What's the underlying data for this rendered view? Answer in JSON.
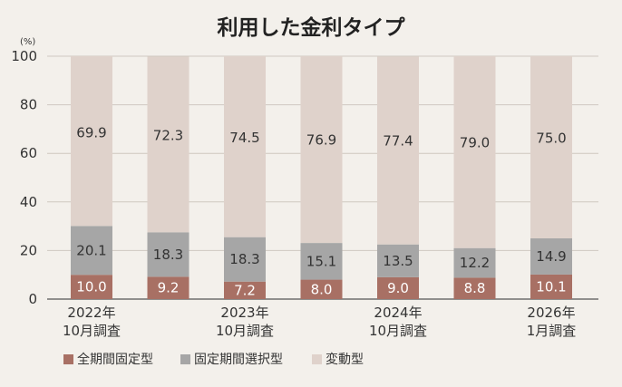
{
  "chart_data": {
    "type": "bar",
    "stacked": true,
    "title": "利用した金利タイプ",
    "unit_label": "(%)",
    "ylim": [
      0,
      100
    ],
    "yticks": [
      "0",
      "20",
      "40",
      "60",
      "80",
      "100"
    ],
    "grid": true,
    "legend_position": "bottom-left",
    "categories": [
      [
        "2022年",
        "10月調査"
      ],
      [
        "",
        ""
      ],
      [
        "2023年",
        "10月調査"
      ],
      [
        "",
        ""
      ],
      [
        "2024年",
        "10月調査"
      ],
      [
        "",
        ""
      ],
      [
        "2026年",
        "1月調査"
      ]
    ],
    "series": [
      {
        "name": "全期間固定型",
        "color": "#a87064",
        "values": [
          10.0,
          9.2,
          7.2,
          8.0,
          9.0,
          8.8,
          10.1
        ],
        "labels": [
          "10.0",
          "9.2",
          "7.2",
          "8.0",
          "9.0",
          "8.8",
          "10.1"
        ]
      },
      {
        "name": "固定期間選択型",
        "color": "#a6a6a6",
        "values": [
          20.1,
          18.3,
          18.3,
          15.1,
          13.5,
          12.2,
          14.9
        ],
        "labels": [
          "20.1",
          "18.3",
          "18.3",
          "15.1",
          "13.5",
          "12.2",
          "14.9"
        ]
      },
      {
        "name": "変動型",
        "color": "#dfd2cb",
        "values": [
          69.9,
          72.3,
          74.5,
          76.9,
          77.4,
          79.0,
          75.0
        ],
        "labels": [
          "69.9",
          "72.3",
          "74.5",
          "76.9",
          "77.4",
          "79.0",
          "75.0"
        ]
      }
    ]
  }
}
